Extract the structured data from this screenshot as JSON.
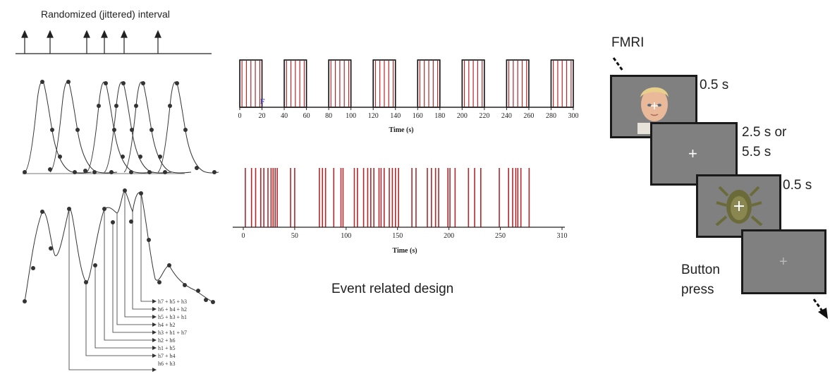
{
  "left_panel": {
    "title": "Randomized (jittered) interval",
    "sums": [
      "h7 + h5 + h3",
      "h6 + h4 + h2",
      "h5 + h3 + h1",
      "h4 + h2",
      "h3 + h1 + h7",
      "h2 + h6",
      "h1 + h5",
      "h7 + h4",
      "h6 + h3"
    ]
  },
  "block_chart": {
    "type": "bar",
    "xlabel": "Time (s)",
    "ticks": [
      "0",
      "20",
      "40",
      "60",
      "80",
      "100",
      "120",
      "140",
      "160",
      "180",
      "200",
      "220",
      "240",
      "260",
      "280",
      "300"
    ],
    "xlim": [
      0,
      300
    ],
    "marker": "F",
    "blocks": [
      [
        0,
        20
      ],
      [
        40,
        60
      ],
      [
        80,
        100
      ],
      [
        120,
        140
      ],
      [
        160,
        180
      ],
      [
        200,
        220
      ],
      [
        240,
        260
      ],
      [
        280,
        300
      ]
    ],
    "events": [
      2,
      6,
      10,
      14,
      18,
      42,
      46,
      50,
      54,
      58,
      82,
      86,
      90,
      94,
      98,
      122,
      126,
      130,
      134,
      138,
      162,
      166,
      170,
      174,
      178,
      202,
      206,
      210,
      214,
      218,
      242,
      246,
      250,
      254,
      258,
      282,
      286,
      290,
      294,
      298
    ],
    "event_color": "#b5262a"
  },
  "event_chart": {
    "type": "bar",
    "xlabel": "Time (s)",
    "ticks": [
      "0",
      "50",
      "100",
      "150",
      "200",
      "250",
      "310"
    ],
    "tick_values": [
      0,
      50,
      100,
      150,
      200,
      250,
      310
    ],
    "xlim": [
      0,
      310
    ],
    "events": [
      2,
      8,
      12,
      17,
      20,
      24,
      27,
      29,
      31,
      33,
      46,
      50,
      74,
      77,
      80,
      88,
      95,
      97,
      108,
      111,
      117,
      121,
      124,
      127,
      132,
      134,
      137,
      142,
      145,
      148,
      151,
      164,
      168,
      179,
      183,
      187,
      190,
      199,
      201,
      206,
      219,
      225,
      231,
      249,
      258,
      262,
      265,
      267,
      270,
      278
    ],
    "event_color": "#b5262a"
  },
  "caption": "Event related design",
  "fmri": {
    "label": "FMRI",
    "durations": [
      "0.5 s",
      "2.5 s or",
      "5.5 s",
      "0.5 s"
    ],
    "button_label": [
      "Button",
      "press"
    ],
    "cross": "+"
  }
}
